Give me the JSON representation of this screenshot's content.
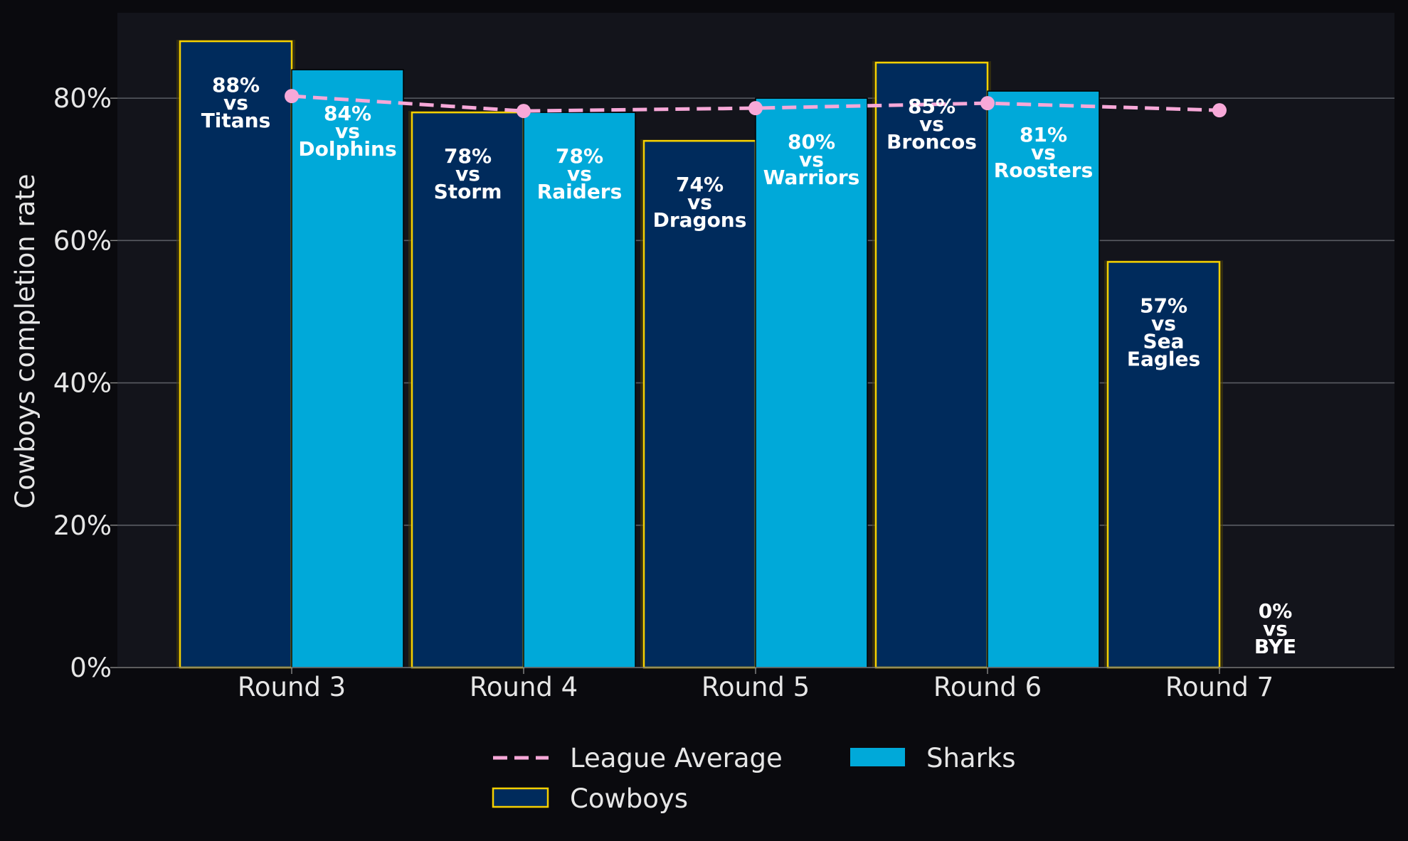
{
  "chart_data": {
    "type": "bar",
    "categories": [
      "Round 3",
      "Round 4",
      "Round 5",
      "Round 6",
      "Round 7"
    ],
    "ylabel": "Cowboys completion rate",
    "ylim": [
      0,
      92
    ],
    "yticks": [
      0,
      20,
      40,
      60,
      80
    ],
    "ytick_labels": [
      "0%",
      "20%",
      "40%",
      "60%",
      "80%"
    ],
    "grid": "horizontal",
    "legend_placement": "bottom-center",
    "series": [
      {
        "name": "Cowboys",
        "kind": "bar",
        "color": "#002b5c",
        "edge_color": "#f5d000",
        "values": [
          88,
          78,
          74,
          85,
          57
        ],
        "labels": [
          [
            "88%",
            "vs",
            "Titans"
          ],
          [
            "78%",
            "vs",
            "Storm"
          ],
          [
            "74%",
            "vs",
            "Dragons"
          ],
          [
            "85%",
            "vs",
            "Broncos"
          ],
          [
            "57%",
            "vs",
            "Sea",
            "Eagles"
          ]
        ]
      },
      {
        "name": "Sharks",
        "kind": "bar",
        "color": "#00a9d9",
        "edge_color": "#000000",
        "values": [
          84,
          78,
          80,
          81,
          0
        ],
        "labels": [
          [
            "84%",
            "vs",
            "Dolphins"
          ],
          [
            "78%",
            "vs",
            "Raiders"
          ],
          [
            "80%",
            "vs",
            "Warriors"
          ],
          [
            "81%",
            "vs",
            "Roosters"
          ],
          [
            "0%",
            "vs",
            "BYE"
          ]
        ]
      },
      {
        "name": "League Average",
        "kind": "line",
        "style": "dashed",
        "color": "#f7a8d8",
        "values": [
          80.3,
          78.2,
          78.6,
          79.3,
          78.3
        ]
      }
    ]
  }
}
